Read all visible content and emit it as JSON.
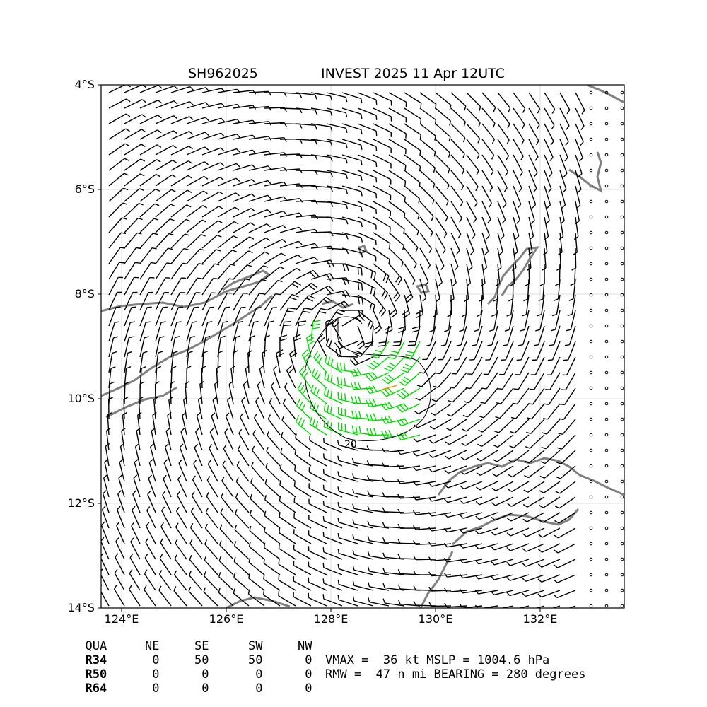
{
  "title": {
    "storm_id": "SH962025",
    "name_time": "INVEST 2025 11 Apr 12UTC"
  },
  "axes": {
    "lat_labels": [
      "4°S",
      "6°S",
      "8°S",
      "10°S",
      "12°S",
      "14°S"
    ],
    "lon_labels": [
      "124°E",
      "126°E",
      "128°E",
      "130°E",
      "132°E"
    ]
  },
  "contour_label": "20",
  "radii_table": {
    "header": [
      "QUA",
      "NE",
      "SE",
      "SW",
      "NW"
    ],
    "rows": [
      [
        "R34",
        "0",
        "50",
        "50",
        "0"
      ],
      [
        "R50",
        "0",
        "0",
        "0",
        "0"
      ],
      [
        "R64",
        "0",
        "0",
        "0",
        "0"
      ]
    ]
  },
  "stats": {
    "line1": "VMAX =  36 kt MSLP = 1004.6 hPa",
    "line2": "RMW =  47 n mi BEARING = 280 degrees"
  },
  "colors": {
    "barb": "#000000",
    "barb_34kt": "#00dd00",
    "barb_50kt": "#e8a000",
    "coast": "#808080",
    "grid": "#dddddd"
  }
}
